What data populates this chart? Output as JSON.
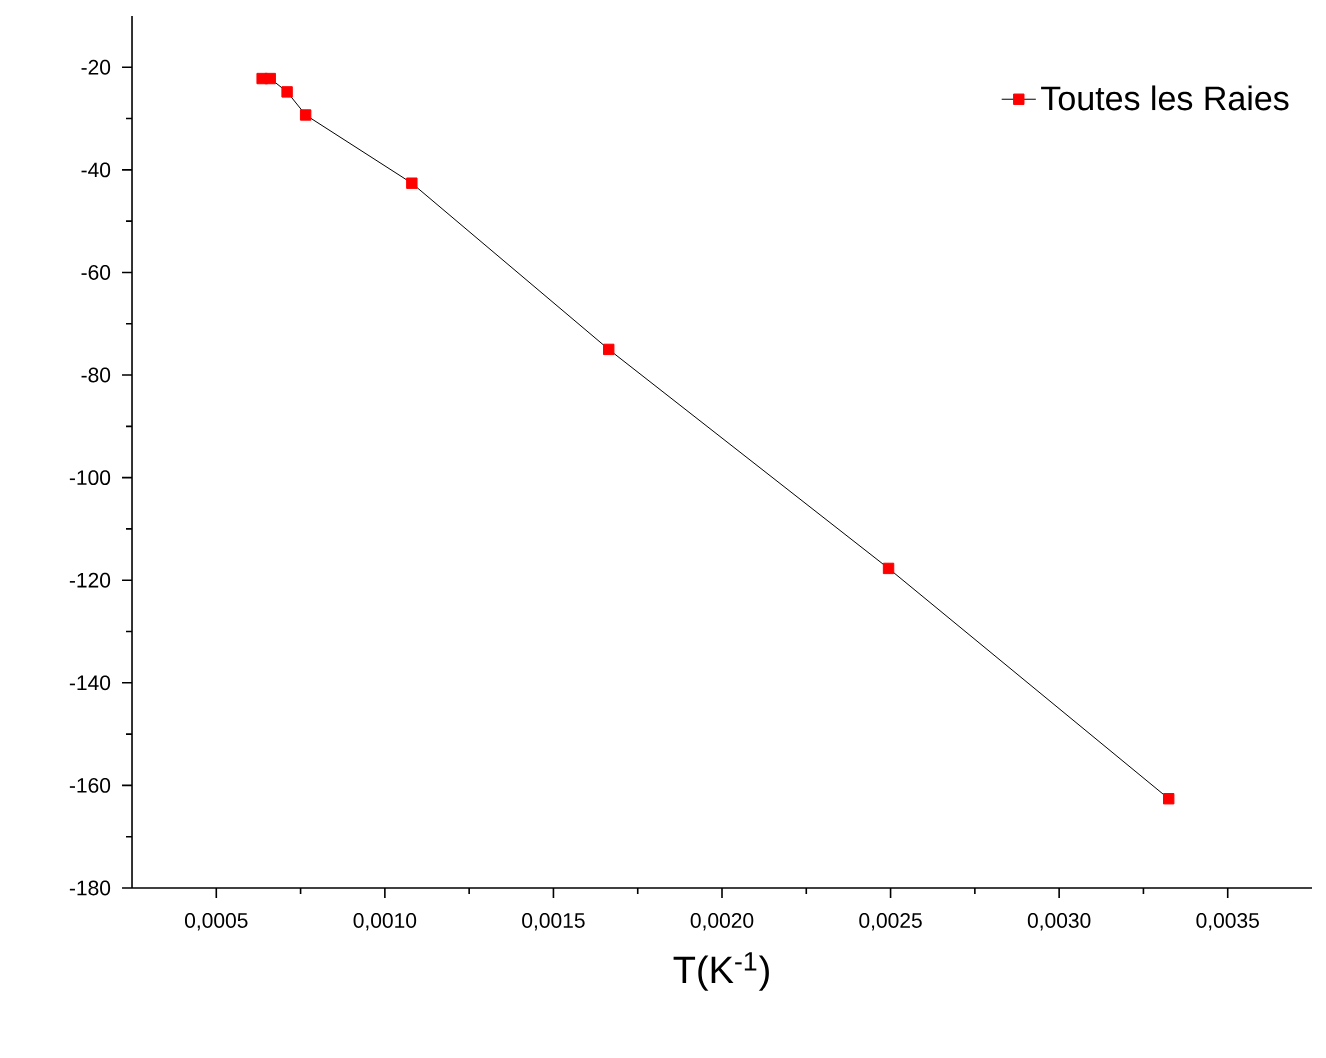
{
  "chart_data": {
    "type": "line",
    "xlabel": "T(K$^{-1}$)",
    "xlim": [
      0.00025,
      0.00375
    ],
    "xticks": [
      {
        "value": 0.0005,
        "label": "0,0005"
      },
      {
        "value": 0.001,
        "label": "0,0010"
      },
      {
        "value": 0.0015,
        "label": "0,0015"
      },
      {
        "value": 0.002,
        "label": "0,0020"
      },
      {
        "value": 0.0025,
        "label": "0,0025"
      },
      {
        "value": 0.003,
        "label": "0,0030"
      },
      {
        "value": 0.0035,
        "label": "0,0035"
      }
    ],
    "ylim": [
      -180,
      -10
    ],
    "yticks": [
      -180,
      -160,
      -140,
      -120,
      -100,
      -80,
      -60,
      -40,
      -20
    ],
    "series": [
      {
        "name": "Toutes les Raies",
        "color": "#ff0000",
        "x": [
          0.000636,
          0.00066,
          0.00071,
          0.000765,
          0.00108,
          0.001664,
          0.002494,
          0.003325
        ],
        "values": [
          -22.2,
          -22.2,
          -24.8,
          -29.3,
          -42.6,
          -75.0,
          -117.7,
          -162.6
        ]
      }
    ],
    "marker": "square",
    "legend": "top right",
    "grid": false
  }
}
